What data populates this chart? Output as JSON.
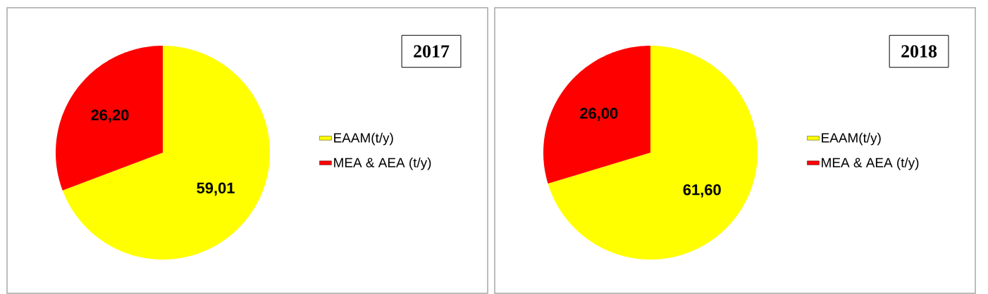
{
  "chart_data": [
    {
      "type": "pie",
      "title": "2017",
      "categories": [
        "EAAM(t/y)",
        "MEA & AEA (t/y)"
      ],
      "values": [
        59.01,
        26.2
      ],
      "colors": [
        "#ffff00",
        "#ff0000"
      ],
      "value_labels": [
        "59,01",
        "26,20"
      ],
      "legend": "right"
    },
    {
      "type": "pie",
      "title": "2018",
      "categories": [
        "EAAM(t/y)",
        "MEA & AEA (t/y)"
      ],
      "values": [
        61.6,
        26.0
      ],
      "colors": [
        "#ffff00",
        "#ff0000"
      ],
      "value_labels": [
        "61,60",
        "26,00"
      ],
      "legend": "right"
    }
  ]
}
